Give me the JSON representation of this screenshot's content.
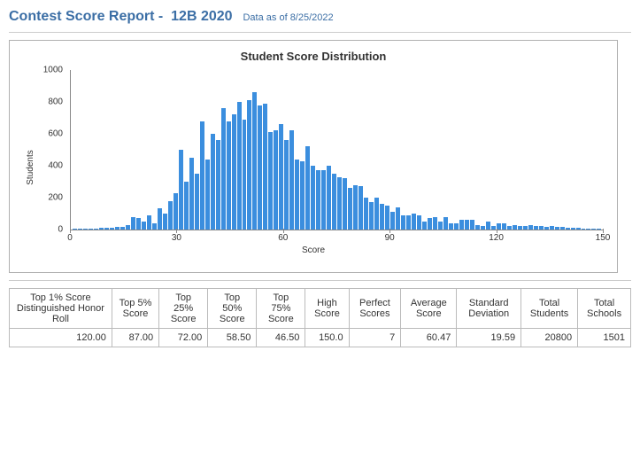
{
  "header": {
    "title_prefix": "Contest Score Report -",
    "contest": "12B 2020",
    "data_as_of_label": "Data as of",
    "data_as_of": "8/25/2022"
  },
  "chart": {
    "type": "histogram",
    "title": "Student Score Distribution",
    "x_label": "Score",
    "y_label": "Students",
    "xlim": [
      0,
      150
    ],
    "xtick_step": 30,
    "xticks": [
      0,
      30,
      60,
      90,
      120,
      150
    ],
    "ylim": [
      0,
      1000
    ],
    "ytick_step": 200,
    "yticks": [
      0,
      200,
      400,
      600,
      800,
      1000
    ],
    "bar_color": "#3b8ede",
    "axis_color": "#888888",
    "background_color": "#ffffff",
    "title_fontsize": 13,
    "label_fontsize": 10,
    "tick_fontsize": 10,
    "values": [
      5,
      5,
      5,
      5,
      5,
      10,
      10,
      10,
      15,
      15,
      30,
      80,
      70,
      50,
      90,
      40,
      135,
      100,
      180,
      230,
      500,
      300,
      450,
      350,
      680,
      440,
      600,
      560,
      760,
      680,
      720,
      800,
      690,
      810,
      860,
      780,
      790,
      610,
      620,
      660,
      560,
      620,
      440,
      430,
      520,
      400,
      370,
      370,
      400,
      350,
      330,
      320,
      260,
      280,
      270,
      200,
      170,
      200,
      160,
      150,
      110,
      140,
      90,
      90,
      100,
      90,
      50,
      70,
      80,
      50,
      80,
      40,
      40,
      60,
      60,
      60,
      30,
      20,
      50,
      20,
      40,
      40,
      20,
      30,
      20,
      20,
      30,
      20,
      20,
      15,
      20,
      15,
      15,
      10,
      10,
      10,
      5,
      8,
      5,
      5
    ]
  },
  "stats": {
    "columns": [
      "Top 1% Score Distinguished Honor Roll",
      "Top 5% Score",
      "Top 25% Score",
      "Top 50% Score",
      "Top 75% Score",
      "High Score",
      "Perfect Scores",
      "Average Score",
      "Standard Deviation",
      "Total Students",
      "Total Schools"
    ],
    "row": [
      "120.00",
      "87.00",
      "72.00",
      "58.50",
      "46.50",
      "150.0",
      "7",
      "60.47",
      "19.59",
      "20800",
      "1501"
    ]
  }
}
